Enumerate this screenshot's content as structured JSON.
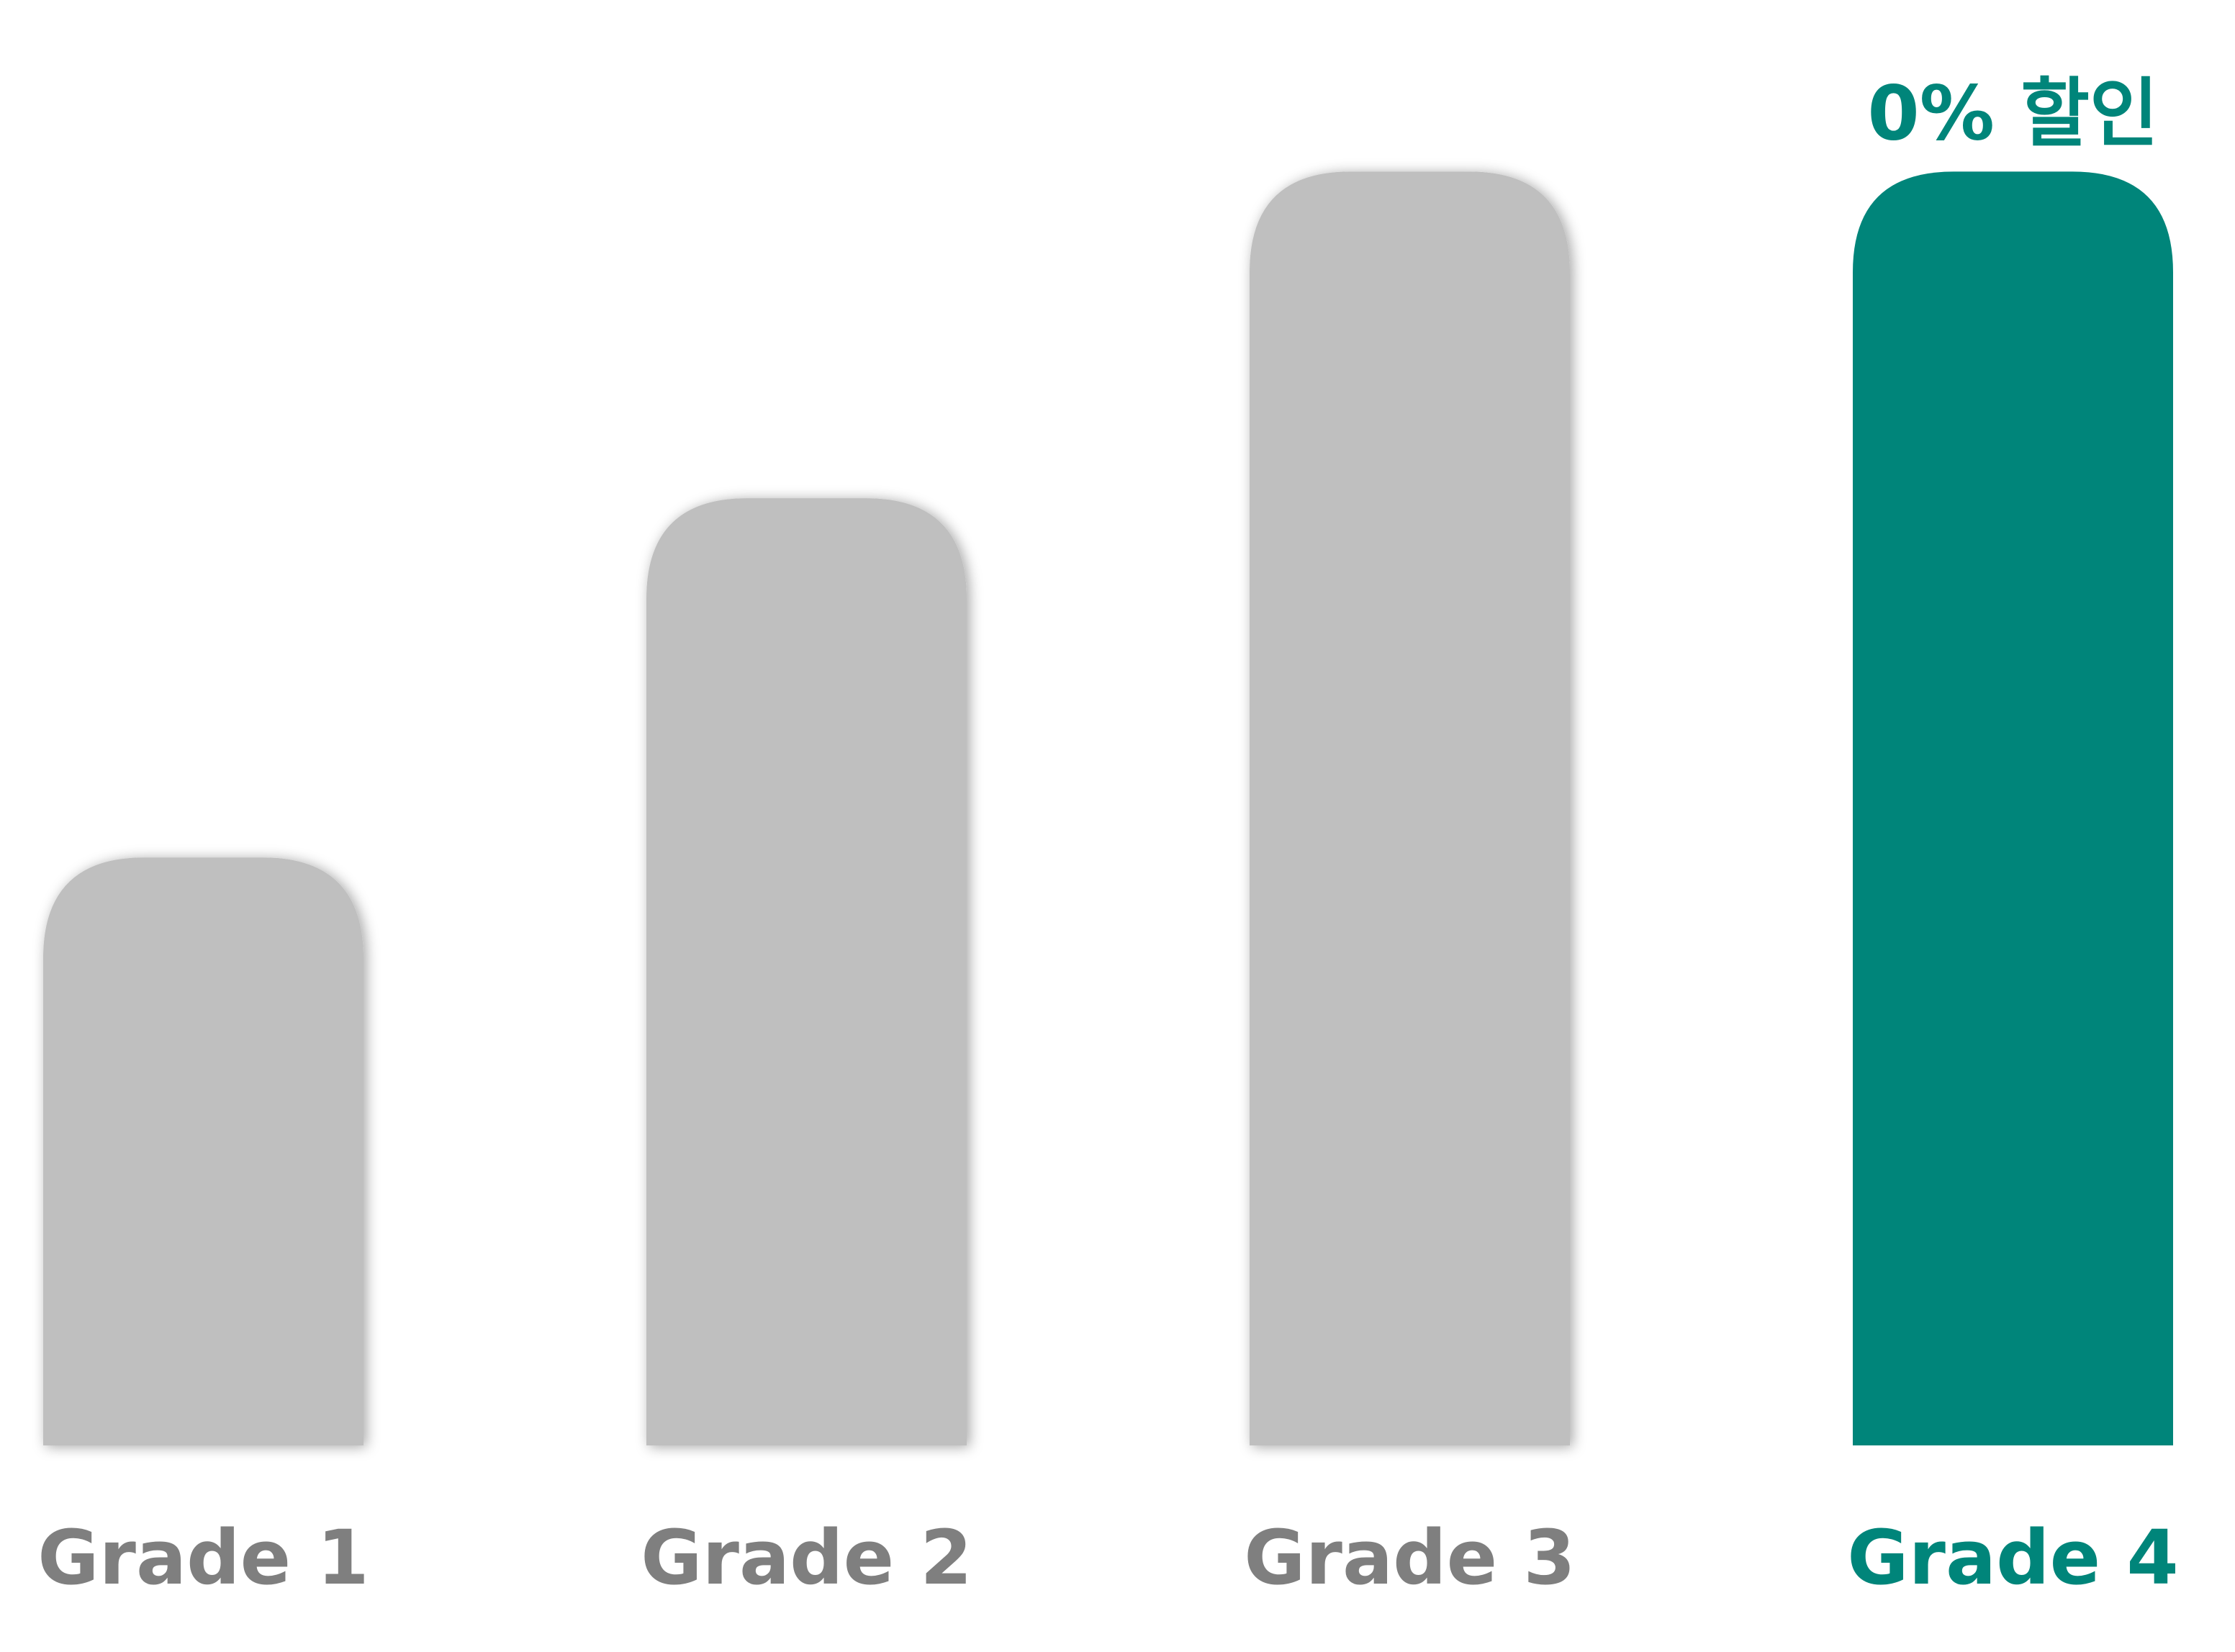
{
  "chart_data": {
    "type": "bar",
    "title": "",
    "xlabel": "",
    "ylabel": "",
    "ylim": [
      0,
      4
    ],
    "grid": false,
    "legend": "none",
    "categories": [
      "Grade 1",
      "Grade 2",
      "Grade 3",
      "Grade 4"
    ],
    "values": [
      1.8,
      2.9,
      3.9,
      3.9
    ],
    "highlight_index": 3,
    "data_labels": [
      "",
      "",
      "",
      "0% 할인"
    ],
    "colors": {
      "bar": "#bfbfbf",
      "highlight": "#00857a",
      "label": "#7f7f7f",
      "highlight_label": "#00857a"
    }
  }
}
